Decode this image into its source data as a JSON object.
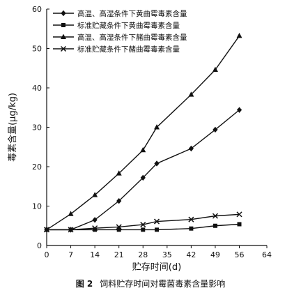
{
  "chart_data": {
    "type": "line",
    "xlabel": "贮存时间(d)",
    "ylabel": "毒素含量(μg/kg)",
    "xlim": [
      0,
      64
    ],
    "ylim": [
      0,
      60
    ],
    "xticks": [
      0,
      7,
      14,
      21,
      28,
      35,
      42,
      49,
      56,
      64
    ],
    "yticks": [
      0,
      10,
      20,
      30,
      40,
      50,
      60
    ],
    "grid": false,
    "legend_position": "top-left",
    "series": [
      {
        "name": "高温、高湿条件下黄曲霉毒素含量",
        "marker": "diamond",
        "x": [
          0,
          7,
          14,
          21,
          28,
          32,
          42,
          49,
          56
        ],
        "y": [
          4,
          4,
          6.5,
          11.3,
          17.2,
          20.8,
          24.6,
          29.4,
          34.4
        ]
      },
      {
        "name": "标准贮藏条件下黄曲霉毒素含量",
        "marker": "square",
        "x": [
          0,
          7,
          14,
          21,
          28,
          32,
          42,
          49,
          56
        ],
        "y": [
          4,
          4,
          4,
          4,
          4,
          4,
          4.3,
          5,
          5.4
        ]
      },
      {
        "name": "高温、高湿条件下赭曲霉毒素含量",
        "marker": "triangle",
        "x": [
          0,
          7,
          14,
          21,
          28,
          32,
          42,
          49,
          56
        ],
        "y": [
          4,
          8,
          12.8,
          18.3,
          24.2,
          30,
          38.3,
          44.6,
          53.2
        ]
      },
      {
        "name": "标准贮藏条件下赭曲霉毒素含量",
        "marker": "x",
        "x": [
          0,
          7,
          14,
          21,
          28,
          32,
          42,
          49,
          56
        ],
        "y": [
          4,
          4,
          4.4,
          4.7,
          5.3,
          6.1,
          6.6,
          7.5,
          7.9
        ]
      }
    ]
  },
  "caption": {
    "figure_label": "图 2",
    "text": "饲料贮存时间对霉菌毒素含量影响"
  }
}
